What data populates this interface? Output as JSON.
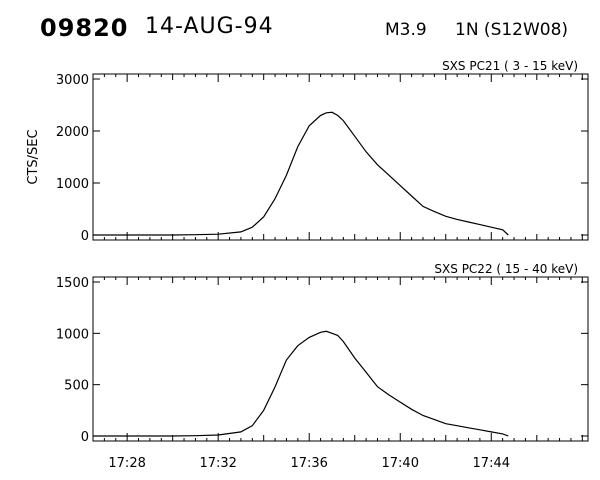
{
  "header": {
    "event_id": "09820",
    "date": "14-AUG-94",
    "flare_class": "M3.9",
    "location": "1N (S12W08)"
  },
  "chart_data": [
    {
      "type": "line",
      "title": "SXS PC21  (  3 - 15 keV)",
      "ylabel": "CTS/SEC",
      "xlabel": "",
      "x_ticks": [
        "17:28",
        "17:32",
        "17:36",
        "17:40",
        "17:44"
      ],
      "xlim": [
        "17:26:30",
        "17:48:15"
      ],
      "ylim": [
        0,
        3000
      ],
      "y_ticks": [
        0,
        1000,
        2000,
        3000
      ],
      "series": [
        {
          "x": [
            "17:26:30",
            "17:28:00",
            "17:30:00",
            "17:31:00",
            "17:32:00",
            "17:33:00",
            "17:33:30",
            "17:34:00",
            "17:34:30",
            "17:35:00",
            "17:35:30",
            "17:36:00",
            "17:36:30",
            "17:36:45",
            "17:37:00",
            "17:37:15",
            "17:37:30",
            "17:38:00",
            "17:38:30",
            "17:39:00",
            "17:39:30",
            "17:40:00",
            "17:40:30",
            "17:41:00",
            "17:41:30",
            "17:42:00",
            "17:42:30",
            "17:43:00",
            "17:43:30",
            "17:44:00",
            "17:44:30",
            "17:44:45"
          ],
          "values": [
            0,
            0,
            0,
            5,
            15,
            60,
            150,
            350,
            700,
            1150,
            1700,
            2100,
            2300,
            2350,
            2360,
            2300,
            2200,
            1900,
            1600,
            1350,
            1150,
            950,
            750,
            550,
            450,
            360,
            300,
            250,
            200,
            150,
            100,
            0
          ]
        }
      ]
    },
    {
      "type": "line",
      "title": "SXS PC22  ( 15 - 40 keV)",
      "ylabel": "",
      "xlabel": "",
      "x_ticks": [
        "17:28",
        "17:32",
        "17:36",
        "17:40",
        "17:44"
      ],
      "xlim": [
        "17:26:30",
        "17:48:15"
      ],
      "ylim": [
        0,
        1500
      ],
      "y_ticks": [
        0,
        500,
        1000,
        1500
      ],
      "series": [
        {
          "x": [
            "17:26:30",
            "17:28:00",
            "17:30:00",
            "17:31:00",
            "17:32:00",
            "17:33:00",
            "17:33:30",
            "17:34:00",
            "17:34:30",
            "17:35:00",
            "17:35:30",
            "17:36:00",
            "17:36:30",
            "17:36:45",
            "17:37:00",
            "17:37:15",
            "17:37:30",
            "17:38:00",
            "17:38:30",
            "17:39:00",
            "17:39:30",
            "17:40:00",
            "17:40:30",
            "17:41:00",
            "17:41:30",
            "17:42:00",
            "17:42:30",
            "17:43:00",
            "17:43:30",
            "17:44:00",
            "17:44:30",
            "17:44:45"
          ],
          "values": [
            0,
            0,
            0,
            3,
            10,
            40,
            100,
            250,
            480,
            740,
            880,
            960,
            1010,
            1020,
            1000,
            980,
            920,
            760,
            620,
            480,
            400,
            330,
            260,
            200,
            160,
            120,
            100,
            80,
            60,
            40,
            20,
            0
          ]
        }
      ]
    }
  ]
}
